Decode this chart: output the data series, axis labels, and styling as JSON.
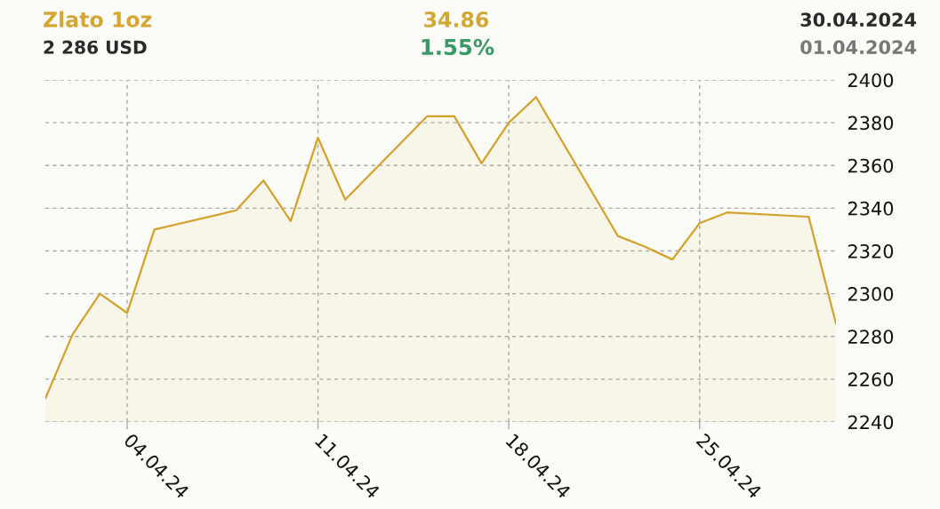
{
  "chart_data": {
    "type": "area",
    "title": "Zlato 1oz",
    "annotations": [
      "2 286 USD",
      "34.86",
      "1.55%",
      "30.04.2024",
      "01.04.2024"
    ],
    "x": [
      "2024-04-01",
      "2024-04-02",
      "2024-04-03",
      "2024-04-04",
      "2024-04-05",
      "2024-04-08",
      "2024-04-09",
      "2024-04-10",
      "2024-04-11",
      "2024-04-12",
      "2024-04-15",
      "2024-04-16",
      "2024-04-17",
      "2024-04-18",
      "2024-04-19",
      "2024-04-22",
      "2024-04-23",
      "2024-04-24",
      "2024-04-25",
      "2024-04-26",
      "2024-04-29",
      "2024-04-30"
    ],
    "values": [
      2251,
      2281,
      2300,
      2291,
      2330,
      2339,
      2353,
      2334,
      2373,
      2344,
      2383,
      2383,
      2361,
      2380,
      2392,
      2327,
      2322,
      2316,
      2333,
      2338,
      2336,
      2286
    ],
    "color": "#d4a22a",
    "xlim": [
      "2024-04-01",
      "2024-04-30"
    ],
    "xticks": [
      {
        "value": "2024-04-04",
        "label": "04.04.24"
      },
      {
        "value": "2024-04-11",
        "label": "11.04.24"
      },
      {
        "value": "2024-04-18",
        "label": "18.04.24"
      },
      {
        "value": "2024-04-25",
        "label": "25.04.24"
      }
    ],
    "ylim": [
      2240,
      2400
    ],
    "yticks": [
      2240,
      2260,
      2280,
      2300,
      2320,
      2340,
      2360,
      2380,
      2400
    ],
    "grid": true
  }
}
